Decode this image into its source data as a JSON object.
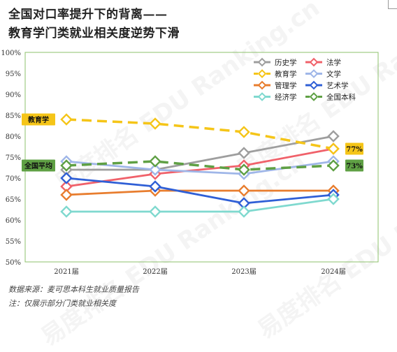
{
  "title_line1": "全国对口率提升下的背离——",
  "title_line2": "教育学门类就业相关度逆势下滑",
  "footnote_source": "数据来源：麦可思本科生就业质量报告",
  "footnote_note": "注：仅展示部分门类就业相关度",
  "watermark": "易度排名 EDU Ranking.cn",
  "chart_data": {
    "type": "line",
    "categories": [
      "2021届",
      "2022届",
      "2023届",
      "2024届"
    ],
    "ylim": [
      50,
      100
    ],
    "yticks": [
      "50%",
      "55%",
      "60%",
      "65%",
      "70%",
      "75%",
      "80%",
      "85%",
      "90%",
      "95%",
      "100%"
    ],
    "legend_position": "top-right",
    "series": [
      {
        "name": "历史学",
        "values": [
          72,
          72,
          76,
          80
        ],
        "color": "#9e9e9e",
        "dashed": false
      },
      {
        "name": "法学",
        "values": [
          68,
          71,
          73,
          77
        ],
        "color": "#f0616a",
        "dashed": false
      },
      {
        "name": "教育学",
        "values": [
          84,
          83,
          81,
          77
        ],
        "color": "#f5c518",
        "dashed": true
      },
      {
        "name": "文学",
        "values": [
          74,
          72,
          71,
          74
        ],
        "color": "#9fb6e8",
        "dashed": false
      },
      {
        "name": "管理学",
        "values": [
          66,
          67,
          67,
          67
        ],
        "color": "#e87d2e",
        "dashed": false
      },
      {
        "name": "艺术学",
        "values": [
          70,
          68,
          64,
          66
        ],
        "color": "#2f5fd6",
        "dashed": false
      },
      {
        "name": "经济学",
        "values": [
          62,
          62,
          62,
          65
        ],
        "color": "#7fd9cf",
        "dashed": false
      },
      {
        "name": "全国本科",
        "values": [
          73,
          74,
          72,
          73
        ],
        "color": "#5fa044",
        "dashed": true
      }
    ],
    "annotations": [
      {
        "label": "教育学",
        "series": "教育学",
        "side": "left",
        "bg": "#f5c518"
      },
      {
        "label": "全国平均",
        "series": "全国本科",
        "side": "left",
        "bg": "#5fa044"
      },
      {
        "label": "77%",
        "series": "教育学",
        "side": "right",
        "bg": "#f5c518"
      },
      {
        "label": "73%",
        "series": "全国本科",
        "side": "right",
        "bg": "#5fa044"
      }
    ]
  }
}
